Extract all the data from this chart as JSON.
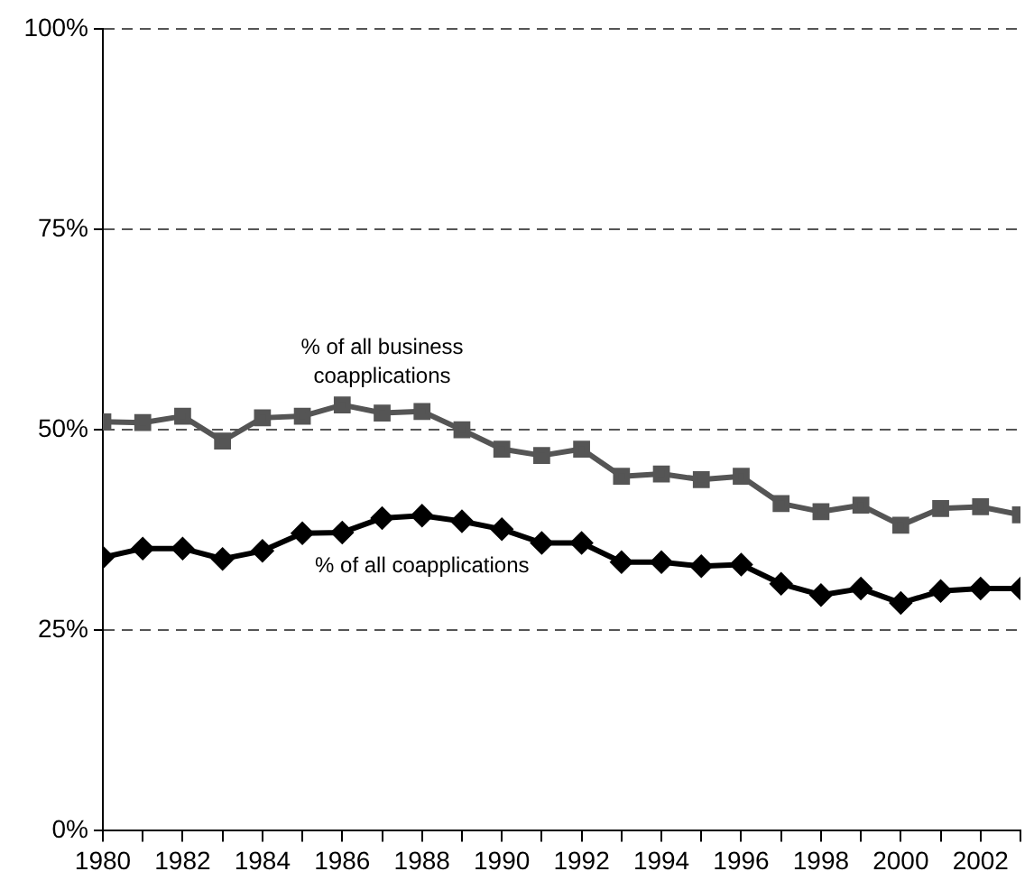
{
  "chart_data": {
    "type": "line",
    "x": [
      1980,
      1981,
      1982,
      1983,
      1984,
      1985,
      1986,
      1987,
      1988,
      1989,
      1990,
      1991,
      1992,
      1993,
      1994,
      1995,
      1996,
      1997,
      1998,
      1999,
      2000,
      2001,
      2002,
      2003
    ],
    "series": [
      {
        "name": "% of all business coapplications",
        "color": "#555555",
        "marker": "square",
        "values": [
          51,
          50.9,
          51.7,
          48.6,
          51.5,
          51.7,
          53.1,
          52.1,
          52.3,
          50,
          47.6,
          46.8,
          47.6,
          44.2,
          44.5,
          43.8,
          44.2,
          40.8,
          39.8,
          40.6,
          38.1,
          40.2,
          40.4,
          39.4
        ]
      },
      {
        "name": "% of all coapplications",
        "color": "#000000",
        "marker": "diamond",
        "values": [
          34.1,
          35.2,
          35.2,
          33.9,
          34.9,
          37.1,
          37.2,
          39,
          39.3,
          38.6,
          37.6,
          35.9,
          35.9,
          33.5,
          33.5,
          33,
          33.2,
          30.8,
          29.4,
          30.2,
          28.4,
          29.9,
          30.2,
          30.2
        ]
      }
    ],
    "xlim": [
      1980,
      2003
    ],
    "xticks": [
      1980,
      {
        "value": 1981,
        "label": null
      },
      1982,
      {
        "value": 1983,
        "label": null
      },
      1984,
      {
        "value": 1985,
        "label": null
      },
      1986,
      {
        "value": 1987,
        "label": null
      },
      1988,
      {
        "value": 1989,
        "label": null
      },
      1990,
      {
        "value": 1991,
        "label": null
      },
      1992,
      {
        "value": 1993,
        "label": null
      },
      1994,
      {
        "value": 1995,
        "label": null
      },
      1996,
      {
        "value": 1997,
        "label": null
      },
      1998,
      {
        "value": 1999,
        "label": null
      },
      2000,
      {
        "value": 2001,
        "label": null
      },
      2002,
      {
        "value": 2003,
        "label": null
      }
    ],
    "ylim": [
      0,
      100
    ],
    "yticks": [
      {
        "value": 0,
        "label": "0%"
      },
      {
        "value": 25,
        "label": "25%"
      },
      {
        "value": 50,
        "label": "50%"
      },
      {
        "value": 75,
        "label": "75%"
      },
      {
        "value": 100,
        "label": "100%"
      }
    ],
    "grid": "y",
    "legend": false,
    "line_style": "solid"
  }
}
